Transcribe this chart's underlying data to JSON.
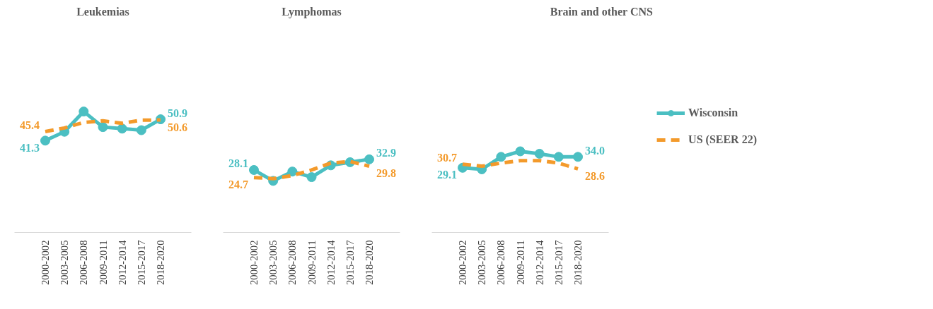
{
  "chart_data": [
    {
      "type": "line",
      "title": "Leukemias",
      "categories": [
        "2000-2002",
        "2003-2005",
        "2006-2008",
        "2009-2011",
        "2012-2014",
        "2015-2017",
        "2018-2020"
      ],
      "tick_labels": "x",
      "series": [
        {
          "color": "#4bbfc2",
          "marker": "circle",
          "line_style": "solid",
          "values": [
            41.3,
            45.3,
            54.4,
            47.4,
            46.7,
            46.0,
            50.9
          ],
          "value_labels": [
            "41.3",
            null,
            null,
            null,
            null,
            null,
            "50.9"
          ]
        },
        {
          "color": "#f39a2b",
          "marker": "none",
          "line_style": "dashed",
          "values": [
            45.4,
            47.0,
            49.5,
            50.2,
            49.1,
            50.5,
            50.6
          ],
          "value_labels": [
            "45.4",
            null,
            null,
            null,
            null,
            null,
            "50.6"
          ]
        }
      ]
    },
    {
      "type": "line",
      "title": "Lymphomas",
      "categories": [
        "2000-2002",
        "2003-2005",
        "2006-2008",
        "2009-2011",
        "2012-2014",
        "2015-2017",
        "2018-2020"
      ],
      "tick_labels": "x",
      "series": [
        {
          "color": "#4bbfc2",
          "marker": "circle",
          "line_style": "solid",
          "values": [
            28.1,
            23.2,
            27.4,
            24.9,
            30.2,
            31.6,
            32.9
          ],
          "value_labels": [
            "28.1",
            null,
            null,
            null,
            null,
            null,
            "32.9"
          ]
        },
        {
          "color": "#f39a2b",
          "marker": "none",
          "line_style": "dashed",
          "values": [
            24.7,
            24.2,
            25.6,
            28.1,
            31.2,
            31.9,
            29.8
          ],
          "value_labels": [
            "24.7",
            null,
            null,
            null,
            null,
            null,
            "29.8"
          ]
        }
      ]
    },
    {
      "type": "line",
      "title": "Brain and other CNS",
      "categories": [
        "2000-2002",
        "2003-2005",
        "2006-2008",
        "2009-2011",
        "2012-2014",
        "2015-2017",
        "2018-2020"
      ],
      "tick_labels": "x",
      "legend": "right",
      "series": [
        {
          "name": "Wisconsin",
          "color": "#4bbfc2",
          "marker": "circle",
          "line_style": "solid",
          "values": [
            29.1,
            28.4,
            34.0,
            36.5,
            35.4,
            34.0,
            34.0
          ],
          "value_labels": [
            "29.1",
            null,
            null,
            null,
            null,
            null,
            "34.0"
          ]
        },
        {
          "name": "US (SEER 22)",
          "color": "#f39a2b",
          "marker": "none",
          "line_style": "dashed",
          "values": [
            30.7,
            29.8,
            31.2,
            32.3,
            32.3,
            31.2,
            28.6
          ],
          "value_labels": [
            "30.7",
            null,
            null,
            null,
            null,
            null,
            "28.6"
          ]
        }
      ]
    }
  ]
}
